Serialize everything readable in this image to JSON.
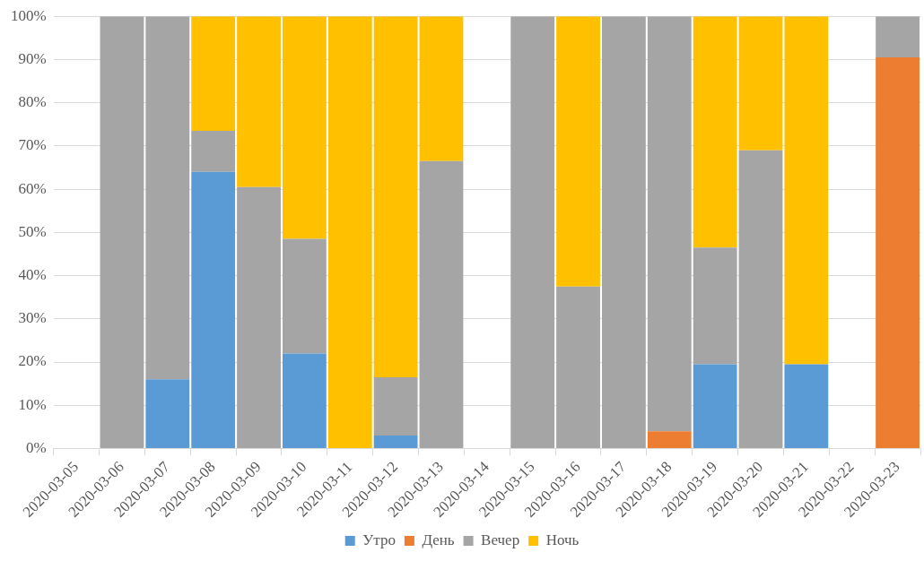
{
  "chart_data": {
    "type": "bar",
    "stacked": true,
    "categories": [
      "2020-03-05",
      "2020-03-06",
      "2020-03-07",
      "2020-03-08",
      "2020-03-09",
      "2020-03-10",
      "2020-03-11",
      "2020-03-12",
      "2020-03-13",
      "2020-03-14",
      "2020-03-15",
      "2020-03-16",
      "2020-03-17",
      "2020-03-18",
      "2020-03-19",
      "2020-03-20",
      "2020-03-21",
      "2020-03-22",
      "2020-03-23"
    ],
    "series": [
      {
        "name": "Утро",
        "color": "#5b9bd5",
        "values": [
          null,
          null,
          16,
          64,
          null,
          22,
          null,
          3,
          null,
          null,
          null,
          null,
          null,
          null,
          19.5,
          null,
          19.5,
          null,
          null
        ]
      },
      {
        "name": "День",
        "color": "#ed7d31",
        "values": [
          null,
          null,
          null,
          null,
          null,
          null,
          null,
          null,
          null,
          null,
          null,
          null,
          null,
          4,
          null,
          null,
          null,
          null,
          90.5
        ]
      },
      {
        "name": "Вечер",
        "color": "#a5a5a5",
        "values": [
          null,
          100,
          84,
          9.5,
          60.5,
          26.5,
          null,
          13.5,
          66.5,
          null,
          100,
          37.5,
          100,
          96,
          27,
          69,
          null,
          null,
          9.5
        ]
      },
      {
        "name": "Ночь",
        "color": "#ffc000",
        "values": [
          null,
          null,
          null,
          26.5,
          39.5,
          51.5,
          100,
          83.5,
          33.5,
          null,
          null,
          62.5,
          null,
          null,
          53.5,
          31,
          80.5,
          null,
          null
        ]
      }
    ],
    "ylim": [
      0,
      100
    ],
    "yticks": [
      {
        "value": 0,
        "label": "0%"
      },
      {
        "value": 10,
        "label": "10%"
      },
      {
        "value": 20,
        "label": "20%"
      },
      {
        "value": 30,
        "label": "30%"
      },
      {
        "value": 40,
        "label": "40%"
      },
      {
        "value": 50,
        "label": "50%"
      },
      {
        "value": 60,
        "label": "60%"
      },
      {
        "value": 70,
        "label": "70%"
      },
      {
        "value": 80,
        "label": "80%"
      },
      {
        "value": 90,
        "label": "90%"
      },
      {
        "value": 100,
        "label": "100%"
      }
    ],
    "grid": "y",
    "legend": "bottom"
  }
}
